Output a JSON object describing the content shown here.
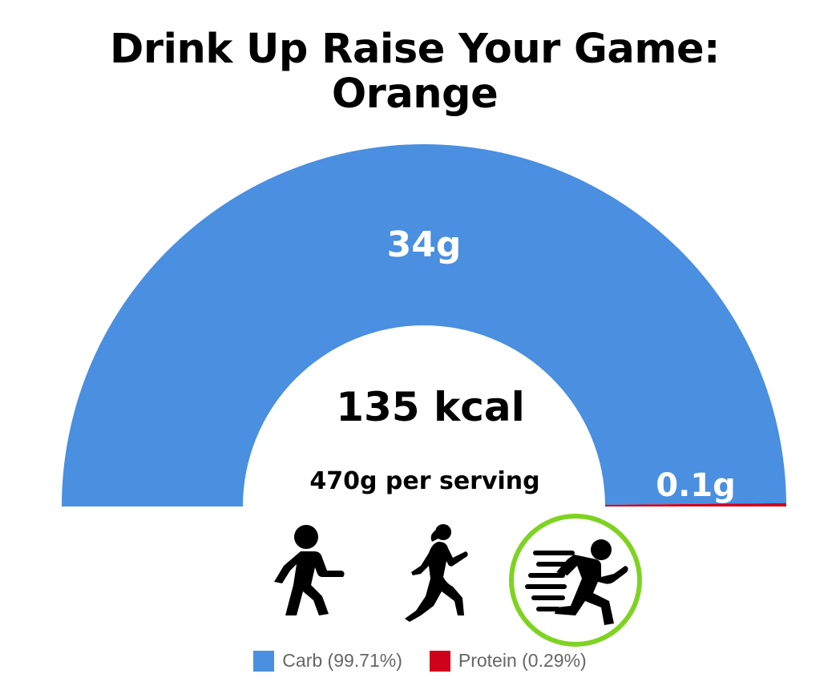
{
  "title_line1": "Drink Up Raise Your Game:",
  "title_line2": "Orange",
  "center": {
    "kcal": "135 kcal",
    "serving": "470g per serving"
  },
  "chart_data": {
    "type": "pie",
    "subtype": "half-donut",
    "slices": [
      {
        "name": "Carb",
        "value": 34,
        "label": "34g",
        "percent": 99.71,
        "color": "#4a8fe0"
      },
      {
        "name": "Protein",
        "value": 0.1,
        "label": "0.1g",
        "percent": 0.29,
        "color": "#d0021b"
      }
    ],
    "legend": [
      {
        "label": "Carb (99.71%)",
        "color": "#4a8fe0"
      },
      {
        "label": "Protein (0.29%)",
        "color": "#d0021b"
      }
    ]
  },
  "icons": [
    "walking-person-icon",
    "running-woman-icon",
    "sprinting-person-icon"
  ],
  "highlight_color": "#7ed321"
}
